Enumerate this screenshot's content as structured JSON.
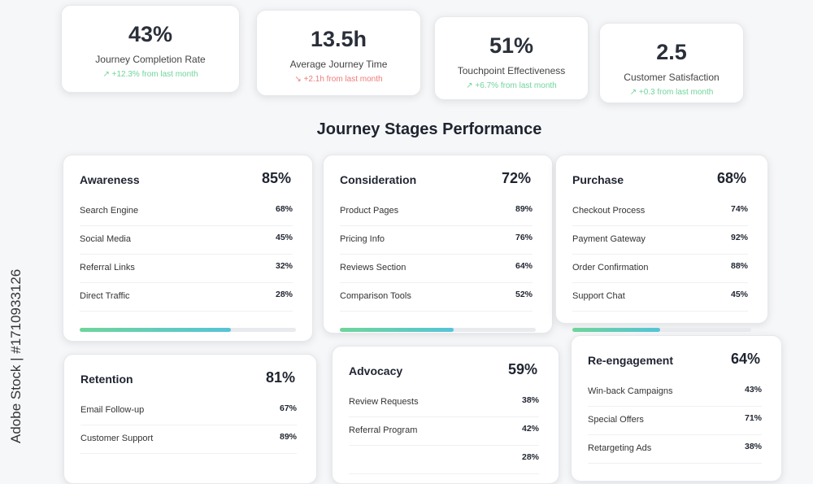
{
  "metrics": [
    {
      "value": "43%",
      "label": "Journey Completion Rate",
      "change": "↗ +12.3% from last month",
      "color": "#6fd59a"
    },
    {
      "value": "13.5h",
      "label": "Average Journey Time",
      "change": "↘ +2.1h from last month",
      "color": "#ef7b7b"
    },
    {
      "value": "51%",
      "label": "Touchpoint Effectiveness",
      "change": "↗ +6.7% from last month",
      "color": "#6fd59a"
    },
    {
      "value": "2.5",
      "label": "Customer Satisfaction",
      "change": "↗ +0.3 from last month",
      "color": "#6fd59a"
    }
  ],
  "section_title": "Journey Stages Performance",
  "stages": [
    {
      "name": "Awareness",
      "value": "85%",
      "items": [
        {
          "name": "Search Engine",
          "value": "68%"
        },
        {
          "name": "Social Media",
          "value": "45%"
        },
        {
          "name": "Referral Links",
          "value": "32%"
        },
        {
          "name": "Direct Traffic",
          "value": "28%"
        }
      ]
    },
    {
      "name": "Consideration",
      "value": "72%",
      "items": [
        {
          "name": "Product Pages",
          "value": "89%"
        },
        {
          "name": "Pricing Info",
          "value": "76%"
        },
        {
          "name": "Reviews Section",
          "value": "64%"
        },
        {
          "name": "Comparison Tools",
          "value": "52%"
        }
      ]
    },
    {
      "name": "Purchase",
      "value": "68%",
      "items": [
        {
          "name": "Checkout Process",
          "value": "74%"
        },
        {
          "name": "Payment Gateway",
          "value": "92%"
        },
        {
          "name": "Order Confirmation",
          "value": "88%"
        },
        {
          "name": "Support Chat",
          "value": "45%"
        }
      ]
    },
    {
      "name": "Retention",
      "value": "81%",
      "items": [
        {
          "name": "Email Follow-up",
          "value": "67%"
        },
        {
          "name": "Customer Support",
          "value": "89%"
        }
      ]
    },
    {
      "name": "Advocacy",
      "value": "59%",
      "items": [
        {
          "name": "Review Requests",
          "value": "38%"
        },
        {
          "name": "Referral Program",
          "value": "42%"
        },
        {
          "value": "28%"
        }
      ]
    },
    {
      "name": "Re-engagement",
      "value": "64%",
      "items": [
        {
          "name": "Win-back Campaigns",
          "value": "43%"
        },
        {
          "name": "Special Offers",
          "value": "71%"
        },
        {
          "name": "Retargeting Ads",
          "value": "38%"
        }
      ]
    }
  ],
  "watermark": "Adobe Stock | #1710933126"
}
